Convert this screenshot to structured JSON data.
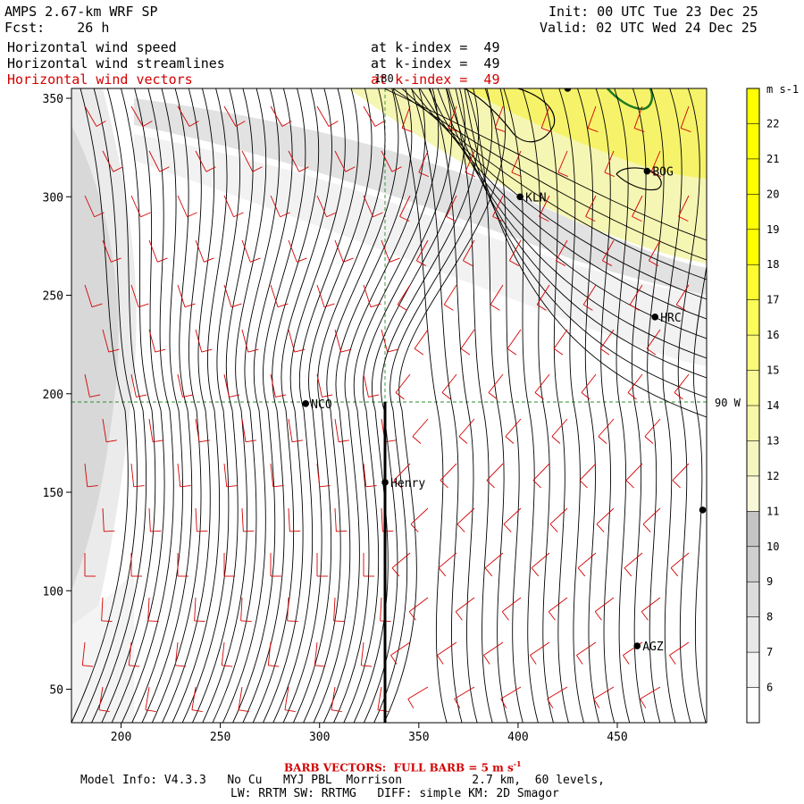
{
  "header": {
    "model": "AMPS 2.67-km WRF SP",
    "forecast": "Fcst:    26 h",
    "init": "Init: 00 UTC Tue 23 Dec 25",
    "valid": "Valid: 02 UTC Wed 24 Dec 25",
    "fields": [
      {
        "name": "Horizontal wind speed",
        "level": "at k-index =  49",
        "color": "#000000"
      },
      {
        "name": "Horizontal wind streamlines",
        "level": "at k-index =  49",
        "color": "#000000"
      },
      {
        "name": "Horizontal wind vectors",
        "level": "at k-index =  49",
        "color": "#d40000"
      }
    ]
  },
  "map": {
    "meridian_label": "180",
    "parallel_label": "90 W",
    "stations": [
      {
        "label": "NCO",
        "x": 293,
        "y": 195
      },
      {
        "label": "Henry",
        "x": 333,
        "y": 155
      },
      {
        "label": "KLN",
        "x": 401,
        "y": 300
      },
      {
        "label": "BOG",
        "x": 465,
        "y": 313
      },
      {
        "label": "HRC",
        "x": 469,
        "y": 239
      },
      {
        "label": "AGZ",
        "x": 460,
        "y": 72
      },
      {
        "label": "",
        "x": 425,
        "y": 355
      },
      {
        "label": "",
        "x": 493,
        "y": 141
      }
    ]
  },
  "chart_data": {
    "type": "heatmap",
    "title": "Horizontal wind speed",
    "xlim": [
      175,
      495
    ],
    "ylim": [
      33,
      355
    ],
    "x_ticks": [
      "200",
      "250",
      "300",
      "350",
      "400",
      "450"
    ],
    "y_ticks": [
      "50",
      "100",
      "150",
      "200",
      "250",
      "300",
      "350"
    ],
    "colorbar": {
      "units": "m s-1",
      "labels": [
        "6",
        "7",
        "8",
        "9",
        "10",
        "11",
        "12",
        "13",
        "14",
        "15",
        "16",
        "17",
        "18",
        "19",
        "20",
        "21",
        "22"
      ],
      "colors": [
        "#ffffff",
        "#f4f4f4",
        "#e8e8e8",
        "#dcdcdc",
        "#cfcfcf",
        "#c4c4c4",
        "#f8f8d8",
        "#f5f5c0",
        "#f7f7a8",
        "#fafa96",
        "#fafa78",
        "#fbfb5a",
        "#fcfc30",
        "#ffff00",
        "#ffff00",
        "#ffff00",
        "#ffff00"
      ]
    },
    "streamlines": true,
    "barb_color": "#d40000",
    "grid": true
  },
  "footer": {
    "barb_note": "BARB VECTORS:  FULL BARB = 5 m s",
    "barb_sup": "-1",
    "model_info": "Model Info: V4.3.3   No Cu   MYJ PBL  Morrison          2.7 km,  60 levels,",
    "physics": "LW: RRTM SW: RRTMG   DIFF: simple KM: 2D Smagor"
  }
}
